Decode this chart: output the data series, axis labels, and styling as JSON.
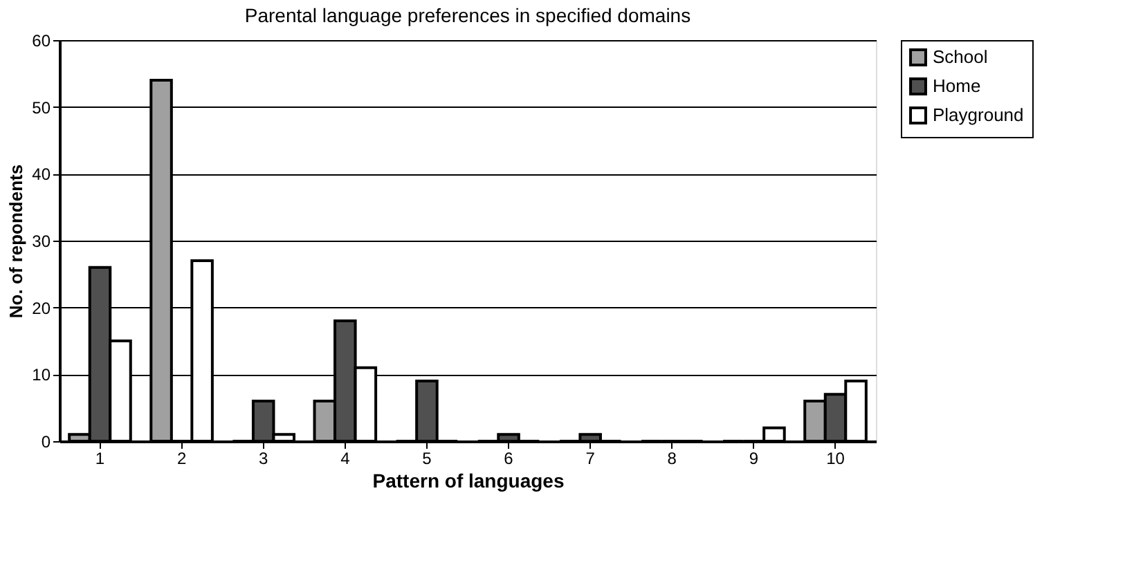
{
  "chart_data": {
    "type": "bar",
    "title": "Parental language preferences in specified domains",
    "xlabel": "Pattern of languages",
    "ylabel": "No. of repondents",
    "categories": [
      "1",
      "2",
      "3",
      "4",
      "5",
      "6",
      "7",
      "8",
      "9",
      "10"
    ],
    "series": [
      {
        "name": "School",
        "color": "#a0a0a0",
        "values": [
          1,
          54,
          0,
          6,
          0,
          0,
          0,
          0,
          0,
          6
        ]
      },
      {
        "name": "Home",
        "color": "#505050",
        "values": [
          26,
          0,
          6,
          18,
          9,
          1,
          1,
          0,
          0,
          7
        ]
      },
      {
        "name": "Playground",
        "color": "#ffffff",
        "values": [
          15,
          27,
          1,
          11,
          0,
          0,
          0,
          0,
          2,
          9
        ]
      }
    ],
    "ylim": [
      0,
      60
    ],
    "yticks": [
      0,
      10,
      20,
      30,
      40,
      50,
      60
    ],
    "grid": "y",
    "legend": "right"
  }
}
